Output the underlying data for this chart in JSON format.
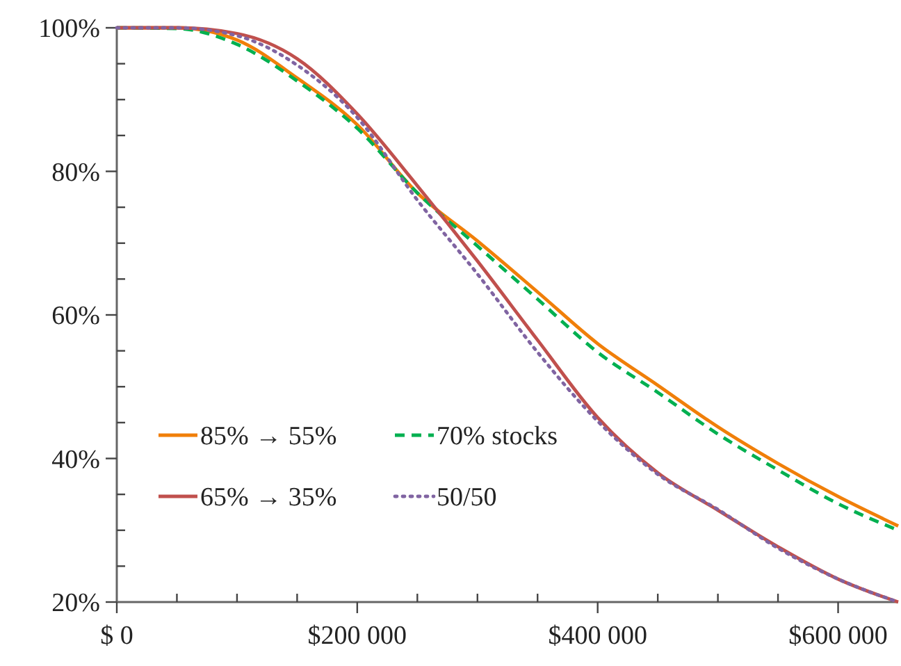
{
  "chart_data": {
    "type": "line",
    "x": [
      0,
      50000,
      100000,
      150000,
      200000,
      250000,
      300000,
      350000,
      400000,
      450000,
      500000,
      550000,
      600000,
      650000
    ],
    "series": [
      {
        "name": "85% → 55%",
        "color": "#f07f09",
        "line_style": "solid",
        "values": [
          100,
          100,
          98.3,
          93,
          86.5,
          77,
          70.3,
          63.2,
          56,
          50.2,
          44.4,
          39.3,
          34.7,
          30.6
        ]
      },
      {
        "name": "70% stocks",
        "color": "#00b050",
        "line_style": "dashed",
        "values": [
          100,
          99.9,
          97.7,
          92.6,
          86,
          77,
          69.6,
          62.2,
          54.8,
          49.2,
          43.4,
          38.4,
          33.7,
          30
        ]
      },
      {
        "name": "65% → 35%",
        "color": "#c0504d",
        "line_style": "solid",
        "values": [
          100,
          100,
          99.2,
          95.7,
          88,
          78,
          67.5,
          56.5,
          45.7,
          38,
          32.8,
          27.7,
          23.2,
          20
        ]
      },
      {
        "name": "50/50",
        "color": "#8064a2",
        "line_style": "dotted",
        "values": [
          100,
          100,
          98.9,
          94.8,
          87.5,
          76,
          65.7,
          54.8,
          45.2,
          37.8,
          32.9,
          27.5,
          23.2,
          20
        ]
      }
    ],
    "xlim": [
      0,
      650000
    ],
    "xticks": [
      {
        "value": 0,
        "label": "$ 0"
      },
      {
        "value": 50000,
        "label": null
      },
      {
        "value": 100000,
        "label": null
      },
      {
        "value": 150000,
        "label": null
      },
      {
        "value": 200000,
        "label": "$200 000"
      },
      {
        "value": 250000,
        "label": null
      },
      {
        "value": 300000,
        "label": null
      },
      {
        "value": 350000,
        "label": null
      },
      {
        "value": 400000,
        "label": "$400 000"
      },
      {
        "value": 450000,
        "label": null
      },
      {
        "value": 500000,
        "label": null
      },
      {
        "value": 550000,
        "label": null
      },
      {
        "value": 600000,
        "label": "$600 000"
      }
    ],
    "ylim": [
      20,
      100
    ],
    "yticks": [
      {
        "value": 20,
        "label": "20%"
      },
      {
        "value": 25,
        "label": null
      },
      {
        "value": 30,
        "label": null
      },
      {
        "value": 35,
        "label": null
      },
      {
        "value": 40,
        "label": "40%"
      },
      {
        "value": 45,
        "label": null
      },
      {
        "value": 50,
        "label": null
      },
      {
        "value": 55,
        "label": null
      },
      {
        "value": 60,
        "label": "60%"
      },
      {
        "value": 65,
        "label": null
      },
      {
        "value": 70,
        "label": null
      },
      {
        "value": 75,
        "label": null
      },
      {
        "value": 80,
        "label": "80%"
      },
      {
        "value": 85,
        "label": null
      },
      {
        "value": 90,
        "label": null
      },
      {
        "value": 95,
        "label": null
      },
      {
        "value": 100,
        "label": "100%"
      }
    ],
    "grid": false,
    "legend": "bottom left"
  }
}
